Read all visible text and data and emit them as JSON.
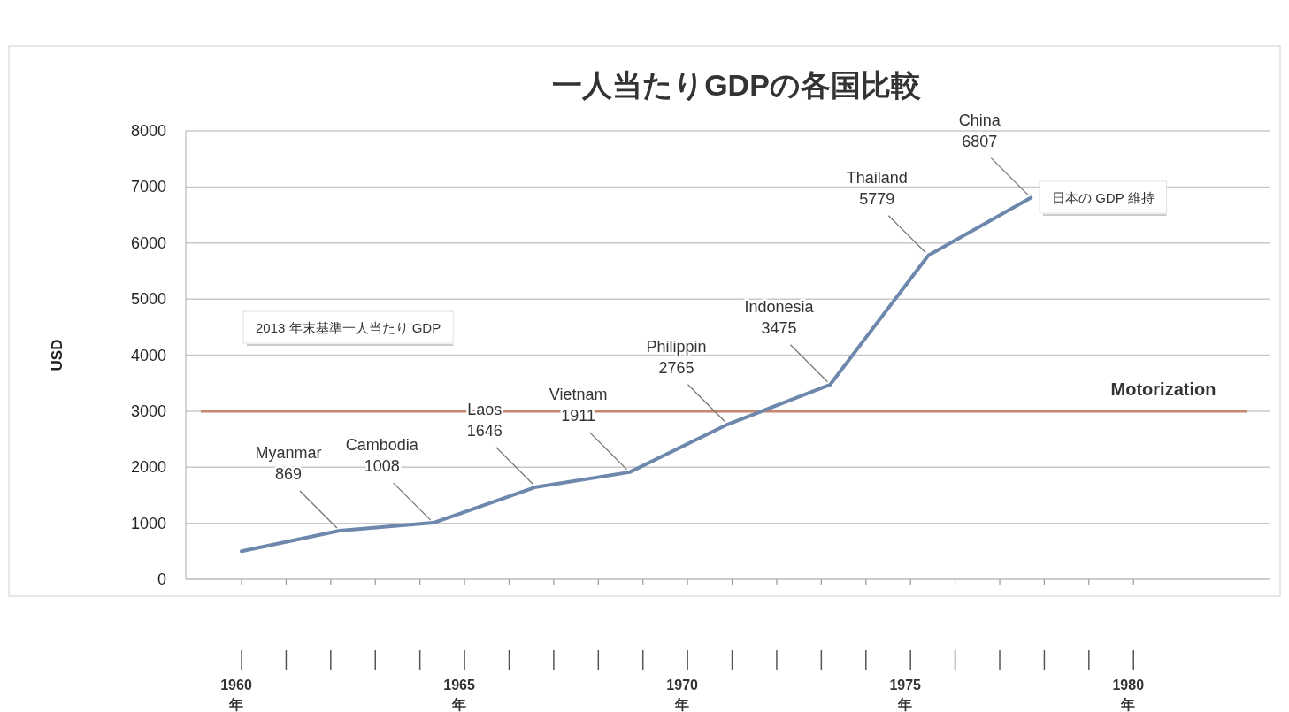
{
  "chart_data": {
    "type": "line",
    "title": "一人当たりGDPの各国比較",
    "ylabel": "USD",
    "x": [
      1960,
      1962.2,
      1964.3,
      1966.6,
      1968.7,
      1970.9,
      1973.2,
      1975.4,
      1977.7
    ],
    "series": [
      {
        "color": "#6d87ad",
        "values": [
          500,
          869,
          1008,
          1646,
          1911,
          2765,
          3475,
          5779,
          6807
        ]
      }
    ],
    "xlim": [
      1958.75,
      1983.05
    ],
    "xticks": [
      {
        "value": 1960,
        "label": "1960\n年"
      },
      {
        "value": 1961,
        "label": null
      },
      {
        "value": 1962,
        "label": null
      },
      {
        "value": 1963,
        "label": null
      },
      {
        "value": 1964,
        "label": null
      },
      {
        "value": 1965,
        "label": "1965\n年"
      },
      {
        "value": 1966,
        "label": null
      },
      {
        "value": 1967,
        "label": null
      },
      {
        "value": 1968,
        "label": null
      },
      {
        "value": 1969,
        "label": null
      },
      {
        "value": 1970,
        "label": "1970\n年"
      },
      {
        "value": 1971,
        "label": null
      },
      {
        "value": 1972,
        "label": null
      },
      {
        "value": 1973,
        "label": null
      },
      {
        "value": 1974,
        "label": null
      },
      {
        "value": 1975,
        "label": "1975\n年"
      },
      {
        "value": 1976,
        "label": null
      },
      {
        "value": 1977,
        "label": null
      },
      {
        "value": 1978,
        "label": null
      },
      {
        "value": 1979,
        "label": null
      },
      {
        "value": 1980,
        "label": "1980\n年"
      }
    ],
    "ylim": [
      0,
      8000
    ],
    "yticks": [
      0,
      1000,
      2000,
      3000,
      4000,
      5000,
      6000,
      7000,
      8000
    ],
    "grid": "y",
    "line_style": "solid",
    "ref_lines": [
      {
        "axis": "y",
        "value": 3000,
        "label": "Motorization",
        "color": "#c8856f"
      }
    ],
    "annotations": [
      {
        "text": "Myanmar\n869",
        "x": 1962.2,
        "y": 869
      },
      {
        "text": "Cambodia\n1008",
        "x": 1964.3,
        "y": 1008
      },
      {
        "text": "Laos\n1646",
        "x": 1966.6,
        "y": 1646
      },
      {
        "text": "Vietnam\n1911",
        "x": 1968.7,
        "y": 1911
      },
      {
        "text": "Philippin\n2765",
        "x": 1970.9,
        "y": 2765
      },
      {
        "text": "Indonesia\n3475",
        "x": 1973.2,
        "y": 3475
      },
      {
        "text": "Thailand\n5779",
        "x": 1975.4,
        "y": 5779
      },
      {
        "text": "China\n6807",
        "x": 1977.7,
        "y": 6807
      },
      "2013 年末基準一人当たり GDP",
      "日本の GDP 維持"
    ]
  }
}
